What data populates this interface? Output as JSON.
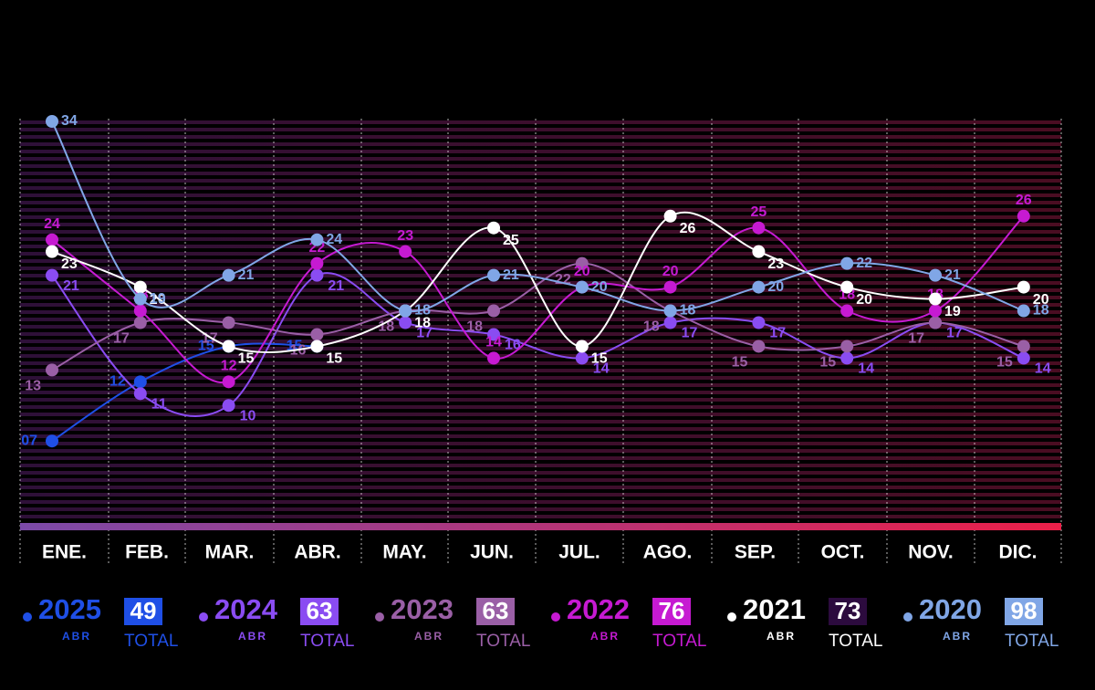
{
  "chart_data": {
    "type": "line",
    "categories": [
      "ENE.",
      "FEB.",
      "MAR.",
      "ABR.",
      "MAY.",
      "JUN.",
      "JUL.",
      "AGO.",
      "SEP.",
      "OCT.",
      "NOV.",
      "DIC."
    ],
    "ylim": [
      0,
      34
    ],
    "legend_sub": "ABR",
    "legend_total_label": "TOTAL",
    "series": [
      {
        "name": "2025",
        "color": "#1f4fe6",
        "values": [
          7,
          12,
          15,
          15,
          null,
          null,
          null,
          null,
          null,
          null,
          null,
          null
        ],
        "value_labels": [
          "07",
          "12",
          "15",
          "15",
          null,
          null,
          null,
          null,
          null,
          null,
          null,
          null
        ],
        "total": 49
      },
      {
        "name": "2024",
        "color": "#8a4cf2",
        "values": [
          21,
          11,
          10,
          21,
          17,
          16,
          14,
          17,
          17,
          14,
          17,
          14
        ],
        "total": 63
      },
      {
        "name": "2023",
        "color": "#9a5fa6",
        "values": [
          13,
          17,
          17,
          16,
          18,
          18,
          22,
          18,
          15,
          15,
          17,
          15
        ],
        "total": 63
      },
      {
        "name": "2022",
        "color": "#c61ad2",
        "values": [
          24,
          18,
          12,
          22,
          23,
          14,
          20,
          20,
          25,
          18,
          18,
          26
        ],
        "total": 76
      },
      {
        "name": "2021",
        "color": "#ffffff",
        "values": [
          23,
          20,
          15,
          15,
          18,
          25,
          15,
          26,
          23,
          20,
          19,
          20
        ],
        "total": 73
      },
      {
        "name": "2020",
        "color": "#80a6e6",
        "values": [
          34,
          19,
          21,
          24,
          18,
          21,
          20,
          18,
          20,
          22,
          21,
          18
        ],
        "total": 98
      }
    ]
  }
}
